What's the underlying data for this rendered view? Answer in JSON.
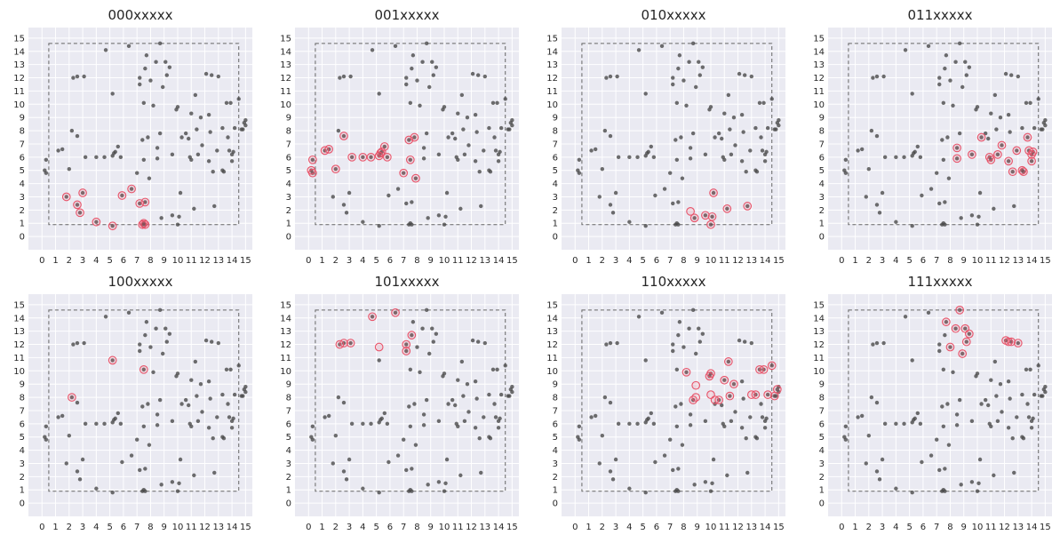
{
  "figure": {
    "background": "#ffffff",
    "axes_facecolor": "#eaeaf2",
    "grid_color": "#ffffff",
    "point_color": "#4a4a4a",
    "highlight_color": "#e8546a",
    "box_color": "#666666"
  },
  "chart_data": {
    "type": "scatter",
    "grid": true,
    "xlim": [
      -1,
      15.5
    ],
    "ylim": [
      -1,
      15.8
    ],
    "xticks": [
      0,
      1,
      2,
      3,
      4,
      5,
      6,
      7,
      8,
      9,
      10,
      11,
      12,
      13,
      14,
      15
    ],
    "yticks": [
      0,
      1,
      2,
      3,
      4,
      5,
      6,
      7,
      8,
      9,
      10,
      11,
      12,
      13,
      14,
      15
    ],
    "bounding_box": {
      "x0": 0.5,
      "x1": 14.5,
      "y0": 0.9,
      "y1": 14.6
    },
    "points": [
      [
        0.3,
        5.8
      ],
      [
        0.2,
        5.0
      ],
      [
        0.3,
        4.8
      ],
      [
        1.2,
        6.5
      ],
      [
        1.5,
        6.6
      ],
      [
        2.0,
        5.1
      ],
      [
        1.8,
        3.0
      ],
      [
        2.2,
        8.0
      ],
      [
        2.3,
        12.0
      ],
      [
        2.6,
        12.1
      ],
      [
        3.1,
        12.1
      ],
      [
        2.6,
        7.6
      ],
      [
        2.6,
        2.4
      ],
      [
        2.8,
        1.8
      ],
      [
        3.0,
        3.3
      ],
      [
        3.2,
        6.0
      ],
      [
        4.0,
        6.0
      ],
      [
        4.0,
        1.1
      ],
      [
        4.6,
        6.0
      ],
      [
        4.7,
        14.1
      ],
      [
        5.2,
        10.8
      ],
      [
        5.2,
        6.1
      ],
      [
        5.4,
        6.4
      ],
      [
        5.3,
        6.3
      ],
      [
        5.2,
        0.8
      ],
      [
        5.6,
        6.8
      ],
      [
        5.8,
        6.0
      ],
      [
        5.9,
        3.1
      ],
      [
        6.4,
        14.4
      ],
      [
        6.6,
        3.6
      ],
      [
        7.0,
        4.8
      ],
      [
        7.2,
        11.5
      ],
      [
        7.2,
        2.5
      ],
      [
        7.2,
        12.0
      ],
      [
        7.4,
        7.3
      ],
      [
        7.5,
        10.1
      ],
      [
        7.6,
        12.7
      ],
      [
        7.7,
        13.7
      ],
      [
        7.8,
        7.5
      ],
      [
        7.9,
        4.4
      ],
      [
        7.5,
        5.8
      ],
      [
        7.6,
        2.6
      ],
      [
        7.5,
        1.0
      ],
      [
        7.4,
        0.9
      ],
      [
        7.6,
        0.9
      ],
      [
        8.0,
        11.8
      ],
      [
        8.2,
        9.9
      ],
      [
        8.4,
        13.2
      ],
      [
        8.5,
        6.7
      ],
      [
        8.7,
        14.6
      ],
      [
        8.9,
        11.3
      ],
      [
        8.7,
        7.8
      ],
      [
        8.5,
        5.9
      ],
      [
        8.8,
        1.4
      ],
      [
        9.1,
        13.2
      ],
      [
        9.2,
        12.2
      ],
      [
        9.4,
        12.8
      ],
      [
        9.6,
        6.2
      ],
      [
        9.6,
        1.6
      ],
      [
        9.9,
        9.6
      ],
      [
        10.0,
        9.8
      ],
      [
        10.1,
        1.5
      ],
      [
        10.2,
        3.3
      ],
      [
        10.0,
        0.9
      ],
      [
        10.3,
        7.5
      ],
      [
        10.6,
        7.8
      ],
      [
        10.8,
        7.4
      ],
      [
        10.9,
        6.0
      ],
      [
        11.0,
        9.3
      ],
      [
        11.0,
        5.8
      ],
      [
        11.2,
        2.1
      ],
      [
        11.3,
        10.7
      ],
      [
        11.4,
        8.1
      ],
      [
        11.5,
        6.2
      ],
      [
        11.7,
        9.0
      ],
      [
        11.8,
        6.9
      ],
      [
        12.1,
        12.3
      ],
      [
        12.3,
        9.2
      ],
      [
        12.3,
        5.7
      ],
      [
        12.5,
        12.2
      ],
      [
        12.4,
        7.9
      ],
      [
        12.6,
        4.9
      ],
      [
        12.7,
        2.3
      ],
      [
        12.9,
        6.5
      ],
      [
        13.0,
        12.1
      ],
      [
        13.3,
        8.2
      ],
      [
        13.3,
        5.0
      ],
      [
        13.4,
        4.9
      ],
      [
        13.6,
        10.1
      ],
      [
        13.7,
        7.5
      ],
      [
        13.8,
        6.5
      ],
      [
        13.9,
        10.1
      ],
      [
        14.0,
        5.7
      ],
      [
        14.1,
        6.4
      ],
      [
        14.2,
        8.2
      ],
      [
        14.5,
        10.4
      ],
      [
        14.7,
        8.1
      ],
      [
        14.9,
        8.6
      ],
      [
        15.0,
        8.8
      ],
      [
        15.0,
        8.4
      ],
      [
        14.8,
        8.1
      ],
      [
        14.0,
        6.2
      ]
    ],
    "panels": [
      {
        "title": "000xxxxx",
        "highlights": [
          [
            1.8,
            3.0
          ],
          [
            2.6,
            2.4
          ],
          [
            2.8,
            1.8
          ],
          [
            3.0,
            3.3
          ],
          [
            4.0,
            1.1
          ],
          [
            5.2,
            0.8
          ],
          [
            5.9,
            3.1
          ],
          [
            6.6,
            3.6
          ],
          [
            7.2,
            2.5
          ],
          [
            7.6,
            2.6
          ],
          [
            7.5,
            1.0
          ],
          [
            7.4,
            0.9
          ],
          [
            7.6,
            0.9
          ]
        ]
      },
      {
        "title": "001xxxxx",
        "highlights": [
          [
            0.3,
            5.8
          ],
          [
            0.2,
            5.0
          ],
          [
            0.3,
            4.8
          ],
          [
            1.2,
            6.5
          ],
          [
            1.5,
            6.6
          ],
          [
            2.0,
            5.1
          ],
          [
            2.6,
            7.6
          ],
          [
            3.2,
            6.0
          ],
          [
            4.0,
            6.0
          ],
          [
            4.6,
            6.0
          ],
          [
            5.2,
            6.1
          ],
          [
            5.4,
            6.4
          ],
          [
            5.3,
            6.3
          ],
          [
            5.6,
            6.8
          ],
          [
            5.8,
            6.0
          ],
          [
            7.0,
            4.8
          ],
          [
            7.4,
            7.3
          ],
          [
            7.8,
            7.5
          ],
          [
            7.9,
            4.4
          ],
          [
            7.5,
            5.8
          ]
        ]
      },
      {
        "title": "010xxxxx",
        "highlights": [
          [
            8.8,
            1.4
          ],
          [
            9.6,
            1.6
          ],
          [
            10.1,
            1.5
          ],
          [
            10.0,
            0.9
          ],
          [
            10.2,
            3.3
          ],
          [
            11.2,
            2.1
          ],
          [
            12.7,
            2.3
          ],
          [
            8.5,
            1.9
          ]
        ]
      },
      {
        "title": "011xxxxx",
        "highlights": [
          [
            8.5,
            6.7
          ],
          [
            8.5,
            5.9
          ],
          [
            9.6,
            6.2
          ],
          [
            10.3,
            7.5
          ],
          [
            10.9,
            6.0
          ],
          [
            11.0,
            5.8
          ],
          [
            11.5,
            6.2
          ],
          [
            11.8,
            6.9
          ],
          [
            12.3,
            5.7
          ],
          [
            12.6,
            4.9
          ],
          [
            12.9,
            6.5
          ],
          [
            13.3,
            5.0
          ],
          [
            13.4,
            4.9
          ],
          [
            13.7,
            7.5
          ],
          [
            13.8,
            6.5
          ],
          [
            14.0,
            5.7
          ],
          [
            14.1,
            6.4
          ],
          [
            14.0,
            6.2
          ]
        ]
      },
      {
        "title": "100xxxxx",
        "highlights": [
          [
            2.2,
            8.0
          ],
          [
            5.2,
            10.8
          ],
          [
            7.5,
            10.1
          ]
        ]
      },
      {
        "title": "101xxxxx",
        "highlights": [
          [
            2.3,
            12.0
          ],
          [
            2.6,
            12.1
          ],
          [
            3.1,
            12.1
          ],
          [
            4.7,
            14.1
          ],
          [
            5.2,
            11.8
          ],
          [
            6.4,
            14.4
          ],
          [
            7.2,
            11.5
          ],
          [
            7.2,
            12.0
          ],
          [
            7.6,
            12.7
          ]
        ]
      },
      {
        "title": "110xxxxx",
        "highlights": [
          [
            8.2,
            9.9
          ],
          [
            8.7,
            7.8
          ],
          [
            8.9,
            8.0
          ],
          [
            8.9,
            8.9
          ],
          [
            9.9,
            9.6
          ],
          [
            10.0,
            9.8
          ],
          [
            10.0,
            8.2
          ],
          [
            10.3,
            7.8
          ],
          [
            10.6,
            7.8
          ],
          [
            11.3,
            10.7
          ],
          [
            11.0,
            9.3
          ],
          [
            11.4,
            8.1
          ],
          [
            11.7,
            9.0
          ],
          [
            13.0,
            8.2
          ],
          [
            13.3,
            8.2
          ],
          [
            13.6,
            10.1
          ],
          [
            13.9,
            10.1
          ],
          [
            14.5,
            10.4
          ],
          [
            14.2,
            8.2
          ],
          [
            14.7,
            8.1
          ],
          [
            14.9,
            8.6
          ]
        ]
      },
      {
        "title": "111xxxxx",
        "highlights": [
          [
            7.7,
            13.7
          ],
          [
            8.0,
            11.8
          ],
          [
            8.4,
            13.2
          ],
          [
            8.7,
            14.6
          ],
          [
            8.9,
            11.3
          ],
          [
            9.1,
            13.2
          ],
          [
            9.2,
            12.2
          ],
          [
            9.4,
            12.8
          ],
          [
            12.1,
            12.3
          ],
          [
            12.3,
            12.2
          ],
          [
            12.5,
            12.2
          ],
          [
            13.0,
            12.1
          ]
        ]
      }
    ]
  }
}
